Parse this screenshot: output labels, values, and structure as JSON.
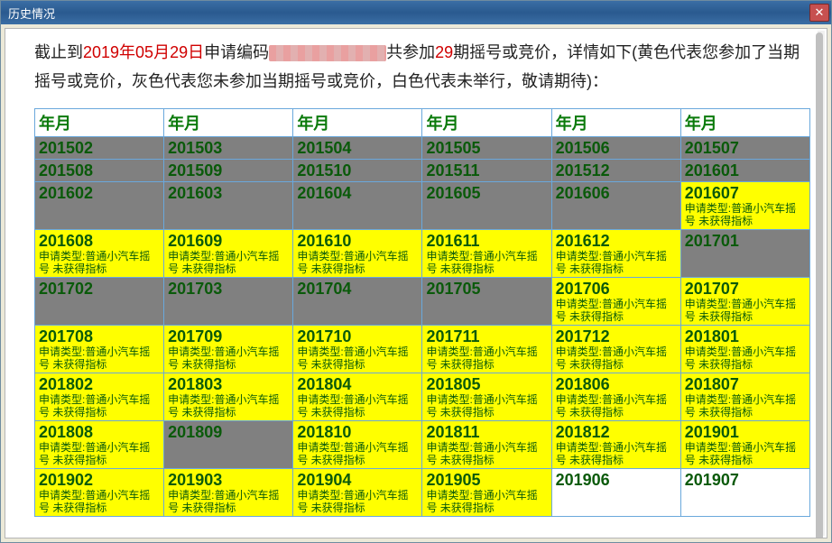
{
  "window": {
    "title": "历史情况"
  },
  "intro": {
    "prefix": "截止到",
    "date": "2019年05月29日",
    "mid1": "申请编码",
    "mid2": "共参加",
    "count": "29",
    "mid3": "期摇号或竞价，详情如下(黄色代表您参加了当期摇号或竞价，灰色代表您未参加当期摇号或竞价，白色代表未举行，敬请期待)："
  },
  "header_label": "年月",
  "status_colors": {
    "gray": "#808080",
    "yellow": "#ffff00",
    "white": "#ffffff"
  },
  "detail_text": "申请类型:普通小汽车摇号 未获得指标",
  "rows": [
    [
      {
        "p": "201502",
        "s": "gray",
        "d": false
      },
      {
        "p": "201503",
        "s": "gray",
        "d": false
      },
      {
        "p": "201504",
        "s": "gray",
        "d": false
      },
      {
        "p": "201505",
        "s": "gray",
        "d": false
      },
      {
        "p": "201506",
        "s": "gray",
        "d": false
      },
      {
        "p": "201507",
        "s": "gray",
        "d": false
      }
    ],
    [
      {
        "p": "201508",
        "s": "gray",
        "d": false
      },
      {
        "p": "201509",
        "s": "gray",
        "d": false
      },
      {
        "p": "201510",
        "s": "gray",
        "d": false
      },
      {
        "p": "201511",
        "s": "gray",
        "d": false
      },
      {
        "p": "201512",
        "s": "gray",
        "d": false
      },
      {
        "p": "201601",
        "s": "gray",
        "d": false
      }
    ],
    [
      {
        "p": "201602",
        "s": "gray",
        "d": false
      },
      {
        "p": "201603",
        "s": "gray",
        "d": false
      },
      {
        "p": "201604",
        "s": "gray",
        "d": false
      },
      {
        "p": "201605",
        "s": "gray",
        "d": false
      },
      {
        "p": "201606",
        "s": "gray",
        "d": false
      },
      {
        "p": "201607",
        "s": "yellow",
        "d": true
      }
    ],
    [
      {
        "p": "201608",
        "s": "yellow",
        "d": true
      },
      {
        "p": "201609",
        "s": "yellow",
        "d": true
      },
      {
        "p": "201610",
        "s": "yellow",
        "d": true
      },
      {
        "p": "201611",
        "s": "yellow",
        "d": true
      },
      {
        "p": "201612",
        "s": "yellow",
        "d": true
      },
      {
        "p": "201701",
        "s": "gray",
        "d": false
      }
    ],
    [
      {
        "p": "201702",
        "s": "gray",
        "d": false
      },
      {
        "p": "201703",
        "s": "gray",
        "d": false
      },
      {
        "p": "201704",
        "s": "gray",
        "d": false
      },
      {
        "p": "201705",
        "s": "gray",
        "d": false
      },
      {
        "p": "201706",
        "s": "yellow",
        "d": true
      },
      {
        "p": "201707",
        "s": "yellow",
        "d": true
      }
    ],
    [
      {
        "p": "201708",
        "s": "yellow",
        "d": true
      },
      {
        "p": "201709",
        "s": "yellow",
        "d": true
      },
      {
        "p": "201710",
        "s": "yellow",
        "d": true
      },
      {
        "p": "201711",
        "s": "yellow",
        "d": true
      },
      {
        "p": "201712",
        "s": "yellow",
        "d": true
      },
      {
        "p": "201801",
        "s": "yellow",
        "d": true
      }
    ],
    [
      {
        "p": "201802",
        "s": "yellow",
        "d": true
      },
      {
        "p": "201803",
        "s": "yellow",
        "d": true
      },
      {
        "p": "201804",
        "s": "yellow",
        "d": true
      },
      {
        "p": "201805",
        "s": "yellow",
        "d": true
      },
      {
        "p": "201806",
        "s": "yellow",
        "d": true
      },
      {
        "p": "201807",
        "s": "yellow",
        "d": true
      }
    ],
    [
      {
        "p": "201808",
        "s": "yellow",
        "d": true
      },
      {
        "p": "201809",
        "s": "gray",
        "d": false
      },
      {
        "p": "201810",
        "s": "yellow",
        "d": true
      },
      {
        "p": "201811",
        "s": "yellow",
        "d": true
      },
      {
        "p": "201812",
        "s": "yellow",
        "d": true
      },
      {
        "p": "201901",
        "s": "yellow",
        "d": true
      }
    ],
    [
      {
        "p": "201902",
        "s": "yellow",
        "d": true
      },
      {
        "p": "201903",
        "s": "yellow",
        "d": true
      },
      {
        "p": "201904",
        "s": "yellow",
        "d": true
      },
      {
        "p": "201905",
        "s": "yellow",
        "d": true
      },
      {
        "p": "201906",
        "s": "white",
        "d": false
      },
      {
        "p": "201907",
        "s": "white",
        "d": false
      }
    ]
  ]
}
